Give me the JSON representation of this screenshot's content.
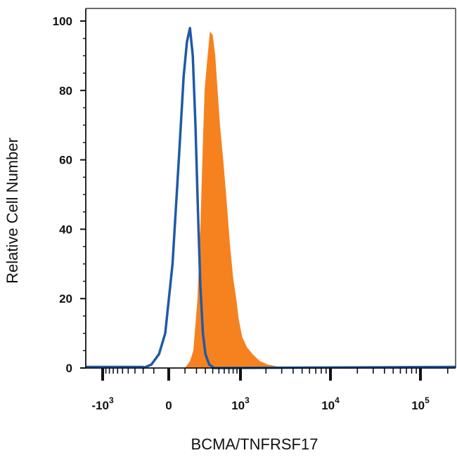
{
  "chart_data": {
    "type": "area",
    "xlabel": "BCMA/TNFRSF17",
    "ylabel": "Relative Cell Number",
    "x_scale": "biexponential",
    "ylim": [
      0,
      100
    ],
    "yticks": [
      0,
      20,
      40,
      60,
      80,
      100
    ],
    "xticks": [
      {
        "value": -1000,
        "base": "-10",
        "exp": "3"
      },
      {
        "value": 0,
        "base": "0",
        "exp": ""
      },
      {
        "value": 1000,
        "base": "10",
        "exp": "3"
      },
      {
        "value": 10000,
        "base": "10",
        "exp": "4"
      },
      {
        "value": 100000,
        "base": "10",
        "exp": "5"
      }
    ],
    "grid": false,
    "legend": "none",
    "series": [
      {
        "style": "filled",
        "color": "#f5821f",
        "points": [
          [
            100,
            0
          ],
          [
            140,
            2
          ],
          [
            170,
            5
          ],
          [
            210,
            20
          ],
          [
            240,
            40
          ],
          [
            270,
            65
          ],
          [
            290,
            80
          ],
          [
            320,
            88
          ],
          [
            360,
            97
          ],
          [
            400,
            96
          ],
          [
            440,
            90
          ],
          [
            470,
            82
          ],
          [
            520,
            70
          ],
          [
            580,
            60
          ],
          [
            650,
            48
          ],
          [
            720,
            36
          ],
          [
            800,
            26
          ],
          [
            880,
            20
          ],
          [
            950,
            14
          ],
          [
            1050,
            9
          ],
          [
            1200,
            6
          ],
          [
            1400,
            4
          ],
          [
            1700,
            2
          ],
          [
            2100,
            1
          ],
          [
            2700,
            0.4
          ],
          [
            3500,
            0
          ]
        ]
      },
      {
        "style": "outline",
        "color": "#1f5aa6",
        "points": [
          [
            -200,
            0
          ],
          [
            -120,
            1
          ],
          [
            -60,
            4
          ],
          [
            -20,
            10
          ],
          [
            20,
            30
          ],
          [
            60,
            62
          ],
          [
            90,
            84
          ],
          [
            115,
            94
          ],
          [
            140,
            98
          ],
          [
            165,
            90
          ],
          [
            190,
            70
          ],
          [
            215,
            45
          ],
          [
            240,
            24
          ],
          [
            270,
            10
          ],
          [
            300,
            4
          ],
          [
            350,
            1
          ],
          [
            420,
            0
          ]
        ]
      }
    ]
  }
}
